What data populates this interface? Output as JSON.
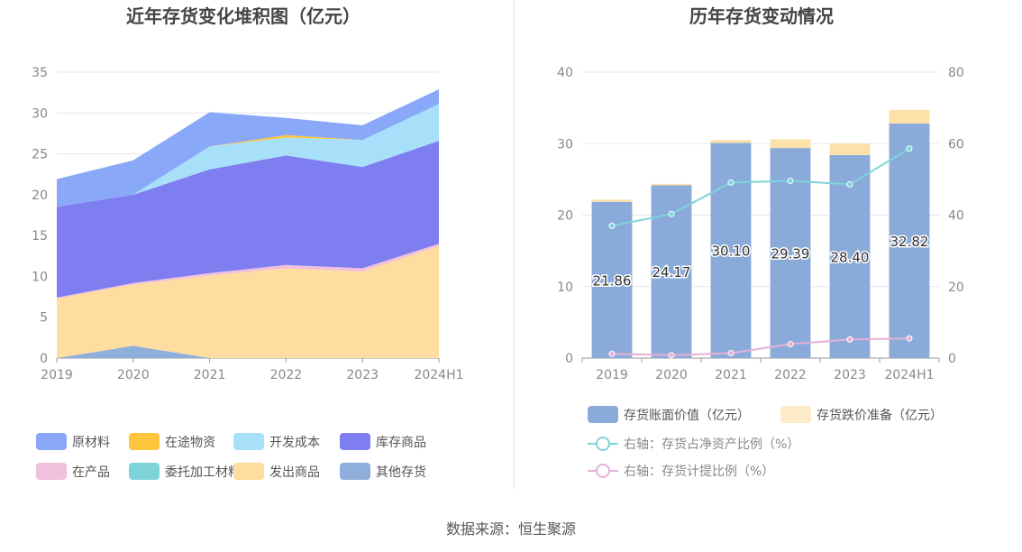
{
  "source_label": "数据来源：恒生聚源",
  "chart_data": [
    {
      "type": "area",
      "stacked": true,
      "title": "近年存货变化堆积图（亿元）",
      "categories": [
        "2019",
        "2020",
        "2021",
        "2022",
        "2023",
        "2024H1"
      ],
      "ylim": [
        0,
        35
      ],
      "yticks": [
        "0",
        "5",
        "10",
        "15",
        "20",
        "25",
        "30",
        "35"
      ],
      "grid": true,
      "legend_position": "bottom",
      "series": [
        {
          "name": "其他存货",
          "color": "#8eaedb",
          "values": [
            0,
            1.5,
            0,
            0,
            0,
            0
          ]
        },
        {
          "name": "发出商品",
          "color": "#ffdca0",
          "values": [
            7.3,
            7.5,
            10.1,
            11.0,
            10.6,
            13.7
          ]
        },
        {
          "name": "委托加工材料",
          "color": "#7fd4d9",
          "values": [
            0,
            0,
            0,
            0,
            0,
            0
          ]
        },
        {
          "name": "在产品",
          "color": "#f0c0dc",
          "values": [
            0.1,
            0.2,
            0.3,
            0.4,
            0.4,
            0.3
          ]
        },
        {
          "name": "库存商品",
          "color": "#7e7ef0",
          "values": [
            11.1,
            10.8,
            12.7,
            13.4,
            12.4,
            12.6
          ]
        },
        {
          "name": "开发成本",
          "color": "#a8e0fa",
          "values": [
            0,
            0,
            2.8,
            2.2,
            3.3,
            4.5
          ]
        },
        {
          "name": "在途物资",
          "color": "#ffc53d",
          "values": [
            0,
            0,
            0,
            0.3,
            0,
            0
          ]
        },
        {
          "name": "原材料",
          "color": "#8aa8f8",
          "values": [
            3.4,
            4.2,
            4.2,
            2.1,
            1.8,
            1.8
          ]
        }
      ],
      "legend_order": [
        "原材料",
        "在途物资",
        "开发成本",
        "库存商品",
        "在产品",
        "委托加工材料",
        "发出商品",
        "其他存货"
      ]
    },
    {
      "type": "bar",
      "stacked": true,
      "title": "历年存货变动情况",
      "categories": [
        "2019",
        "2020",
        "2021",
        "2022",
        "2023",
        "2024H1"
      ],
      "ylim": [
        0,
        40
      ],
      "yticks": [
        "0",
        "10",
        "20",
        "30",
        "40"
      ],
      "y2lim": [
        0,
        80
      ],
      "y2ticks": [
        "0",
        "20",
        "40",
        "60",
        "80"
      ],
      "grid": true,
      "legend_position": "bottom",
      "series": [
        {
          "name": "存货账面价值（亿元）",
          "kind": "bar",
          "color": "#8aabda",
          "values": [
            21.86,
            24.17,
            30.1,
            29.39,
            28.4,
            32.82
          ],
          "labels": [
            "21.86",
            "24.17",
            "30.10",
            "29.39",
            "28.40",
            "32.82"
          ]
        },
        {
          "name": "存货跌价准备（亿元）",
          "kind": "bar",
          "color": "#fde1a8",
          "legend_color": "#fdebc8",
          "values": [
            0.3,
            0.2,
            0.4,
            1.2,
            1.6,
            1.9
          ]
        },
        {
          "name": "右轴：存货占净资产比例（%）",
          "kind": "line",
          "axis": "right",
          "color": "#7fd4d9",
          "values": [
            37.0,
            40.3,
            49.1,
            49.6,
            48.6,
            58.6
          ]
        },
        {
          "name": "右轴：存货计提比例（%）",
          "kind": "line",
          "axis": "right",
          "color": "#e4b0d6",
          "values": [
            1.2,
            0.8,
            1.4,
            3.9,
            5.2,
            5.5
          ]
        }
      ]
    }
  ]
}
